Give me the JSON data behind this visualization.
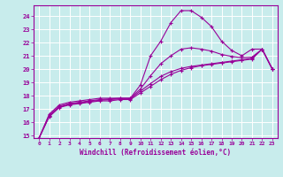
{
  "xlabel": "Windchill (Refroidissement éolien,°C)",
  "bg_color": "#c8ecec",
  "grid_color": "#ffffff",
  "line_color": "#990099",
  "xlim": [
    -0.5,
    23.5
  ],
  "ylim": [
    14.8,
    24.8
  ],
  "xticks": [
    0,
    1,
    2,
    3,
    4,
    5,
    6,
    7,
    8,
    9,
    10,
    11,
    12,
    13,
    14,
    15,
    16,
    17,
    18,
    19,
    20,
    21,
    22,
    23
  ],
  "yticks": [
    15,
    16,
    17,
    18,
    19,
    20,
    21,
    22,
    23,
    24
  ],
  "series": [
    {
      "x": [
        0,
        1,
        2,
        3,
        4,
        5,
        6,
        7,
        8,
        9,
        10,
        11,
        12,
        13,
        14,
        15,
        16,
        17,
        18,
        19,
        20,
        21,
        22,
        23
      ],
      "y": [
        14.8,
        16.6,
        17.3,
        17.5,
        17.6,
        17.7,
        17.8,
        17.8,
        17.8,
        17.8,
        18.8,
        21.0,
        22.1,
        23.5,
        24.4,
        24.4,
        23.9,
        23.2,
        22.1,
        21.4,
        21.0,
        21.5,
        21.5,
        20.0
      ]
    },
    {
      "x": [
        0,
        1,
        2,
        3,
        4,
        5,
        6,
        7,
        8,
        9,
        10,
        11,
        12,
        13,
        14,
        15,
        16,
        17,
        18,
        19,
        20,
        21,
        22,
        23
      ],
      "y": [
        14.8,
        16.4,
        17.1,
        17.3,
        17.4,
        17.5,
        17.6,
        17.6,
        17.7,
        17.7,
        18.2,
        18.7,
        19.2,
        19.6,
        19.9,
        20.1,
        20.25,
        20.35,
        20.45,
        20.55,
        20.65,
        20.75,
        21.5,
        20.0
      ]
    },
    {
      "x": [
        0,
        1,
        2,
        3,
        4,
        5,
        6,
        7,
        8,
        9,
        10,
        11,
        12,
        13,
        14,
        15,
        16,
        17,
        18,
        19,
        20,
        21,
        22,
        23
      ],
      "y": [
        14.8,
        16.5,
        17.2,
        17.4,
        17.5,
        17.6,
        17.7,
        17.75,
        17.8,
        17.8,
        18.5,
        19.5,
        20.4,
        21.0,
        21.5,
        21.6,
        21.5,
        21.35,
        21.1,
        20.95,
        20.85,
        20.9,
        21.5,
        20.0
      ]
    },
    {
      "x": [
        0,
        1,
        2,
        3,
        4,
        5,
        6,
        7,
        8,
        9,
        10,
        11,
        12,
        13,
        14,
        15,
        16,
        17,
        18,
        19,
        20,
        21,
        22,
        23
      ],
      "y": [
        14.8,
        16.45,
        17.15,
        17.35,
        17.45,
        17.55,
        17.65,
        17.7,
        17.75,
        17.75,
        18.35,
        18.9,
        19.45,
        19.8,
        20.05,
        20.2,
        20.3,
        20.4,
        20.5,
        20.6,
        20.7,
        20.8,
        21.5,
        20.0
      ]
    }
  ]
}
